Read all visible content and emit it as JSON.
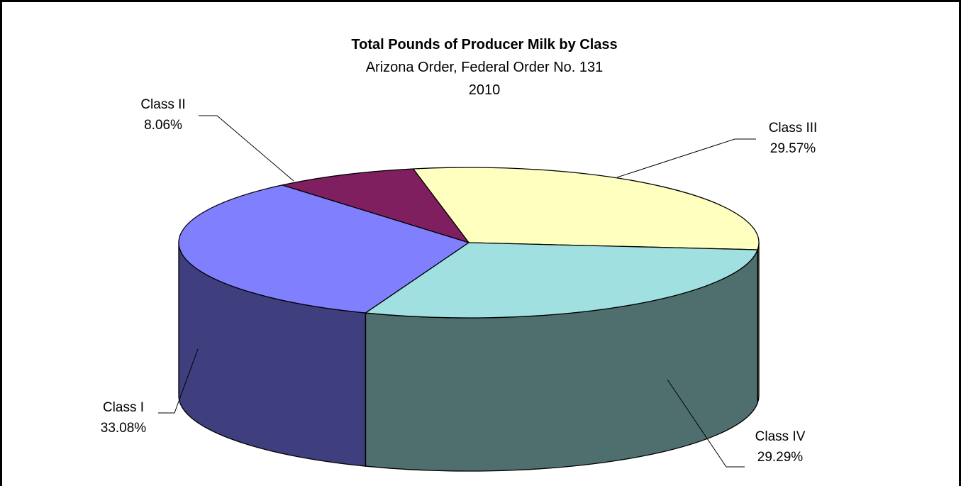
{
  "chart_data": {
    "type": "pie",
    "title": "Total Pounds of Producer Milk by Class",
    "subtitle_lines": [
      "Arizona Order, Federal Order No. 131",
      "2010"
    ],
    "slices": [
      {
        "name": "Class I",
        "value": 33.08,
        "label": "33.08%",
        "top_color": "#8080FF",
        "side_color": "#3F3F7F"
      },
      {
        "name": "Class II",
        "value": 8.06,
        "label": "8.06%",
        "top_color": "#7F1F5F",
        "side_color": "#3F0F2F"
      },
      {
        "name": "Class III",
        "value": 29.57,
        "label": "29.57%",
        "top_color": "#FFFFC0",
        "side_color": "#7F7F60"
      },
      {
        "name": "Class IV",
        "value": 29.29,
        "label": "29.29%",
        "top_color": "#A0E0E0",
        "side_color": "#4F6F6F"
      }
    ],
    "style": "3d-pie",
    "legend": "none"
  }
}
